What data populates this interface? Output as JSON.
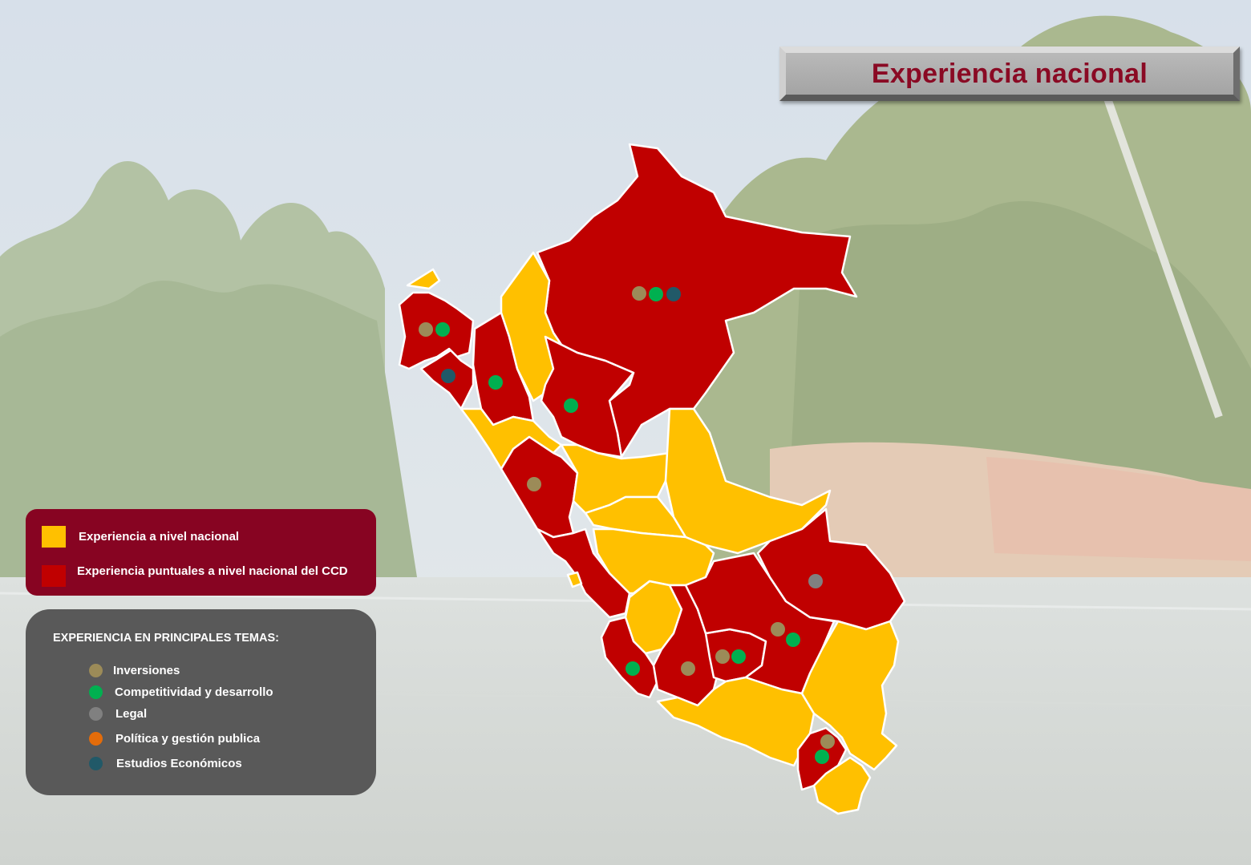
{
  "title": "Experiencia nacional",
  "legend_main": [
    {
      "label": "Experiencia a nivel nacional",
      "color": "#FFC000"
    },
    {
      "label": "Experiencia puntuales a nivel nacional del CCD",
      "color": "#C00000"
    }
  ],
  "legend_topics": {
    "heading": "EXPERIENCIA EN PRINCIPALES TEMAS:",
    "items": [
      {
        "label": "Inversiones",
        "color": "#9C8B58"
      },
      {
        "label": "Competitividad y desarrollo",
        "color": "#00B050"
      },
      {
        "label": "Legal",
        "color": "#808080"
      },
      {
        "label": "Política y gestión publica",
        "color": "#E46C0A"
      },
      {
        "label": "Estudios Económicos",
        "color": "#215968"
      }
    ]
  },
  "colors": {
    "national": "#FFC000",
    "ccd": "#C00000",
    "title_text": "#8A0A24",
    "legend_panel": "#870422",
    "topics_panel": "#595959"
  },
  "map": {
    "regions_ccd": [
      "loreto",
      "piura",
      "lambayeque",
      "cajamarca",
      "amazonas",
      "la-libertad",
      "lima",
      "ica",
      "ayacucho",
      "apurimac",
      "cusco",
      "madre-de-dios",
      "moquegua-tacna"
    ],
    "regions_national": [
      "tumbes",
      "san-martin",
      "ancash",
      "huanuco",
      "ucayali",
      "pasco",
      "junin",
      "huancavelica",
      "arequipa",
      "puno",
      "tacna"
    ],
    "topic_markers": [
      {
        "region": "loreto",
        "topics": [
          "Inversiones",
          "Competitividad y desarrollo",
          "Estudios Económicos"
        ]
      },
      {
        "region": "piura",
        "topics": [
          "Inversiones",
          "Competitividad y desarrollo"
        ]
      },
      {
        "region": "lambayeque",
        "topics": [
          "Estudios Económicos"
        ]
      },
      {
        "region": "cajamarca",
        "topics": [
          "Competitividad y desarrollo"
        ]
      },
      {
        "region": "amazonas",
        "topics": [
          "Competitividad y desarrollo"
        ]
      },
      {
        "region": "la-libertad",
        "topics": [
          "Inversiones"
        ]
      },
      {
        "region": "madre-de-dios",
        "topics": [
          "Legal"
        ]
      },
      {
        "region": "cusco",
        "topics": [
          "Inversiones",
          "Competitividad y desarrollo"
        ]
      },
      {
        "region": "apurimac",
        "topics": [
          "Inversiones",
          "Competitividad y desarrollo"
        ]
      },
      {
        "region": "ayacucho",
        "topics": [
          "Inversiones"
        ]
      },
      {
        "region": "ica",
        "topics": [
          "Competitividad y desarrollo"
        ]
      },
      {
        "region": "moquegua",
        "topics": [
          "Inversiones",
          "Competitividad y desarrollo"
        ]
      }
    ]
  }
}
